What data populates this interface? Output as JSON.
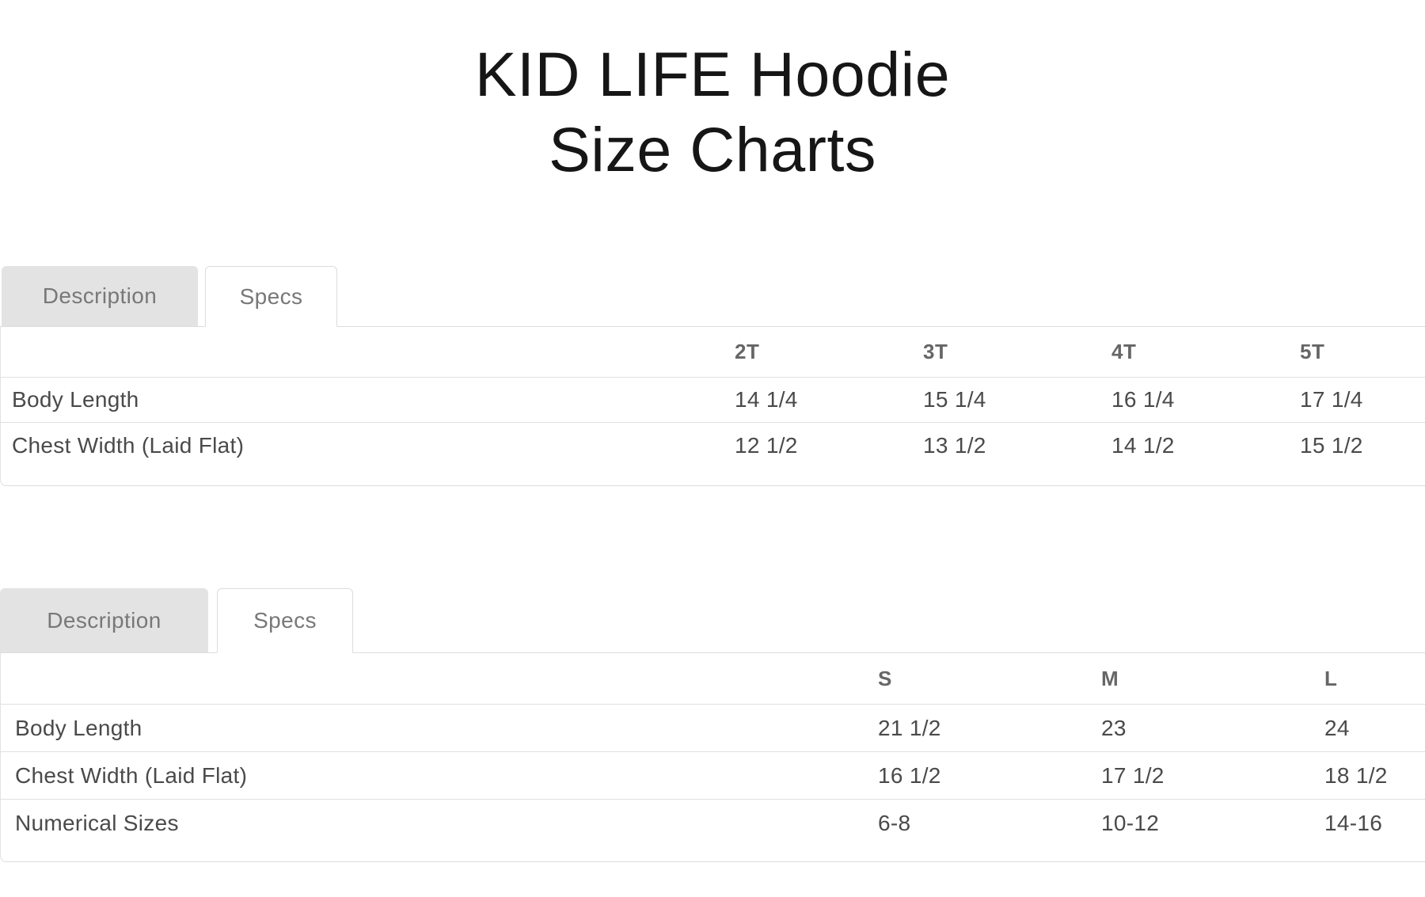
{
  "page_title": {
    "line1": "KID LIFE Hoodie",
    "line2": "Size Charts"
  },
  "sections": [
    {
      "tabs": [
        {
          "label": "Description",
          "active": false
        },
        {
          "label": "Specs",
          "active": true
        }
      ],
      "table": {
        "columns": [
          "2T",
          "3T",
          "4T",
          "5T"
        ],
        "rows": [
          {
            "label": "Body Length",
            "values": [
              "14 1/4",
              "15 1/4",
              "16 1/4",
              "17 1/4"
            ]
          },
          {
            "label": "Chest Width (Laid Flat)",
            "values": [
              "12 1/2",
              "13 1/2",
              "14 1/2",
              "15 1/2"
            ]
          }
        ]
      }
    },
    {
      "tabs": [
        {
          "label": "Description",
          "active": false
        },
        {
          "label": "Specs",
          "active": true
        }
      ],
      "table": {
        "columns": [
          "S",
          "M",
          "L"
        ],
        "rows": [
          {
            "label": "Body Length",
            "values": [
              "21 1/2",
              "23",
              "24"
            ]
          },
          {
            "label": "Chest Width (Laid Flat)",
            "values": [
              "16 1/2",
              "17 1/2",
              "18 1/2"
            ]
          },
          {
            "label": "Numerical Sizes",
            "values": [
              "6-8",
              "10-12",
              "14-16"
            ]
          }
        ]
      }
    }
  ],
  "colors": {
    "title_text": "#161616",
    "tab_inactive_bg": "#e3e3e3",
    "tab_text": "#787878",
    "panel_border": "#dddddd",
    "row_line": "#e0e0e0",
    "header_text": "#666666",
    "body_text": "#4a4a4a"
  }
}
